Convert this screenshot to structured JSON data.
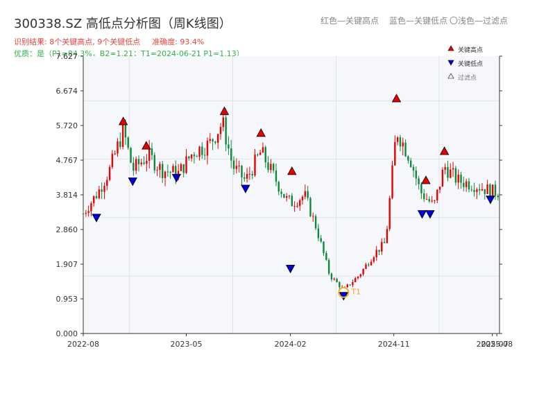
{
  "title": "300338.SZ 高低点分析图（周K线图）",
  "header_legend": {
    "red": "红色—关键高点",
    "blue": "蓝色—关键低点",
    "light": "〇浅色—过滤点"
  },
  "summary": {
    "result": "识别结果: 8个关键高点, 9个关键低点",
    "accuracy": "准确度: 93.4%",
    "quality": "优质：是（P1=84.3%，B2=1.21；T1=2024-06-21 P1=1.13）"
  },
  "colors": {
    "up": "#e60000",
    "down": "#0a8a3a",
    "high_marker": "#e60000",
    "low_marker": "#0000dd",
    "t1_ring": "#f5a623",
    "grid": "#dfe3ea",
    "plot_bg": "#f5f7fa",
    "summary_red": "#e8453c",
    "summary_green": "#2db34a"
  },
  "chart_data": {
    "type": "candlestick",
    "title": "300338.SZ 高低点分析图（周K线图）",
    "x_tick_labels": [
      "2022-08",
      "2023-05",
      "2024-02",
      "2024-11",
      "2025-07",
      "2025-08"
    ],
    "y_tick_labels": [
      "0.000",
      "0.953",
      "1.907",
      "2.860",
      "3.814",
      "4.767",
      "5.720",
      "6.674",
      "7.627"
    ],
    "ylim": [
      0,
      7.627
    ],
    "xlim": [
      "2022-08-01",
      "2025-08-08"
    ],
    "grid": true,
    "legend": {
      "placement": "top-right",
      "entries": [
        "关键高点",
        "关键低点",
        "过滤点"
      ]
    },
    "price_path": [
      [
        "2022-08-01",
        3.3
      ],
      [
        "2022-09-10",
        3.9
      ],
      [
        "2022-10-10",
        4.5
      ],
      [
        "2022-11-15",
        5.6
      ],
      [
        "2022-12-10",
        4.5
      ],
      [
        "2023-01-20",
        4.9
      ],
      [
        "2023-02-25",
        4.5
      ],
      [
        "2023-04-10",
        4.4
      ],
      [
        "2023-05-20",
        5.0
      ],
      [
        "2023-07-01",
        5.2
      ],
      [
        "2023-08-05",
        5.8
      ],
      [
        "2023-09-01",
        4.6
      ],
      [
        "2023-10-05",
        4.2
      ],
      [
        "2023-11-15",
        5.0
      ],
      [
        "2023-12-15",
        4.4
      ],
      [
        "2024-01-20",
        3.7
      ],
      [
        "2024-02-05",
        3.6
      ],
      [
        "2024-03-10",
        3.8
      ],
      [
        "2024-04-10",
        2.9
      ],
      [
        "2024-05-15",
        1.6
      ],
      [
        "2024-06-21",
        1.2
      ],
      [
        "2024-08-01",
        1.6
      ],
      [
        "2024-09-10",
        2.2
      ],
      [
        "2024-10-10",
        2.5
      ],
      [
        "2024-11-08",
        5.6
      ],
      [
        "2024-12-15",
        4.8
      ],
      [
        "2025-01-10",
        3.9
      ],
      [
        "2025-02-15",
        3.5
      ],
      [
        "2025-03-15",
        4.6
      ],
      [
        "2025-04-20",
        4.2
      ],
      [
        "2025-06-01",
        4.1
      ],
      [
        "2025-07-20",
        3.9
      ],
      [
        "2025-08-05",
        3.9
      ]
    ],
    "key_highs": [
      {
        "date": "2022-11-15",
        "value": 5.72
      },
      {
        "date": "2023-01-15",
        "value": 5.05
      },
      {
        "date": "2023-08-10",
        "value": 6.0
      },
      {
        "date": "2023-11-15",
        "value": 5.4
      },
      {
        "date": "2024-02-05",
        "value": 4.35
      },
      {
        "date": "2024-11-08",
        "value": 6.35
      },
      {
        "date": "2025-01-25",
        "value": 4.1
      },
      {
        "date": "2025-03-15",
        "value": 4.9
      }
    ],
    "key_lows": [
      {
        "date": "2022-09-05",
        "value": 3.3
      },
      {
        "date": "2022-12-10",
        "value": 4.3
      },
      {
        "date": "2023-04-05",
        "value": 4.4
      },
      {
        "date": "2023-10-05",
        "value": 4.1
      },
      {
        "date": "2024-02-01",
        "value": 1.9
      },
      {
        "date": "2024-06-21",
        "value": 1.15
      },
      {
        "date": "2025-01-15",
        "value": 3.4
      },
      {
        "date": "2025-02-05",
        "value": 3.4
      },
      {
        "date": "2025-07-15",
        "value": 3.8
      }
    ],
    "t1": {
      "label": "T1",
      "date": "2024-06-21",
      "value": 1.13
    }
  }
}
